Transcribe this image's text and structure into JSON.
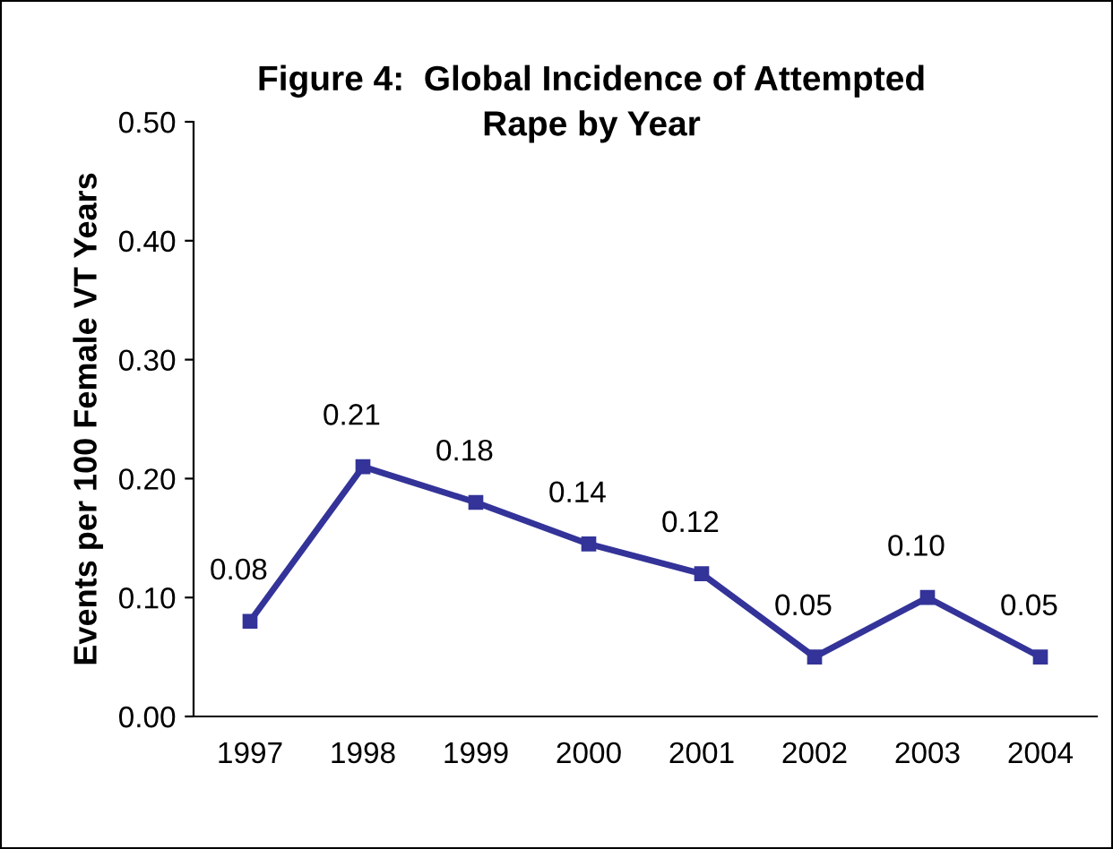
{
  "chart_data": {
    "type": "line",
    "title": "Figure 4:  Global Incidence of Attempted\nRape by Year",
    "ylabel": "Events per 100 Female VT Years",
    "categories": [
      "1997",
      "1998",
      "1999",
      "2000",
      "2001",
      "2002",
      "2003",
      "2004"
    ],
    "series": [
      {
        "color": "#333399",
        "values": [
          0.08,
          0.21,
          0.18,
          0.145,
          0.12,
          0.05,
          0.1,
          0.05
        ],
        "value_labels": [
          "0.08",
          "0.21",
          "0.18",
          "0.14",
          "0.12",
          "0.05",
          "0.10",
          "0.05"
        ]
      }
    ],
    "ylim": [
      0,
      0.5
    ],
    "yticks": [
      {
        "value": 0,
        "label": "0.00"
      },
      {
        "value": 0.1,
        "label": "0.10"
      },
      {
        "value": 0.2,
        "label": "0.20"
      },
      {
        "value": 0.3,
        "label": "0.30"
      },
      {
        "value": 0.4,
        "label": "0.40"
      },
      {
        "value": 0.5,
        "label": "0.50"
      }
    ],
    "marker": "square",
    "line_style": "solid",
    "grid": false
  }
}
